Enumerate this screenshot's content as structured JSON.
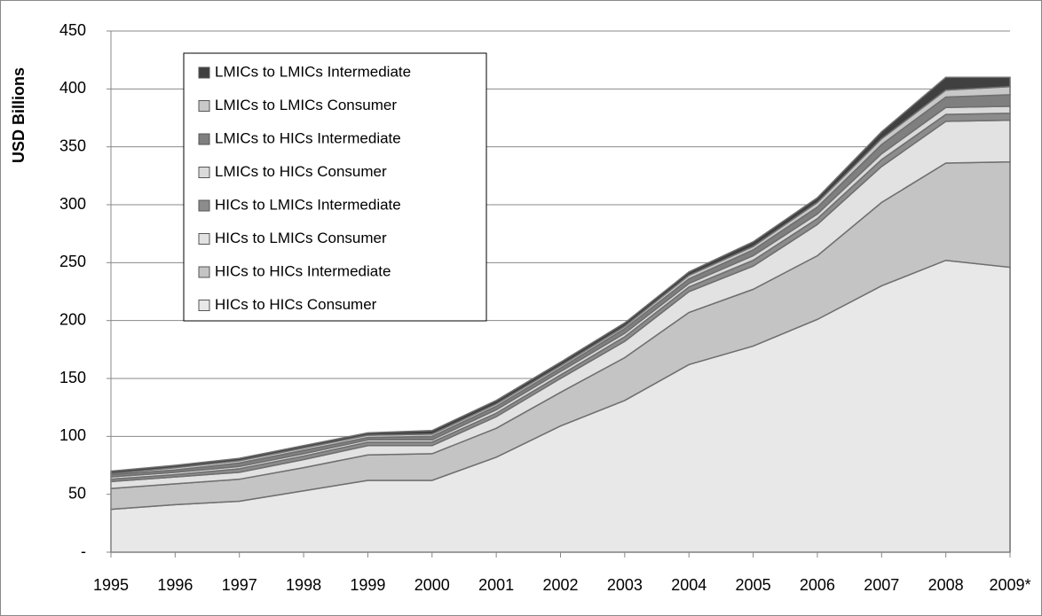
{
  "chart_data": {
    "type": "stacked_area",
    "y_label": "USD Billions",
    "categories": [
      "1995",
      "1996",
      "1997",
      "1998",
      "1999",
      "2000",
      "2001",
      "2002",
      "2003",
      "2004",
      "2005",
      "2006",
      "2007",
      "2008",
      "2009*"
    ],
    "series": [
      {
        "name": "HICs to HICs Consumer",
        "color": "#e8e8e8",
        "values": [
          37,
          41,
          44,
          53,
          62,
          62,
          82,
          109,
          131,
          162,
          178,
          201,
          230,
          252,
          246
        ]
      },
      {
        "name": "HICs to HICs Intermediate",
        "color": "#c4c4c4",
        "values": [
          18,
          18,
          19,
          20,
          22,
          23,
          25,
          29,
          37,
          45,
          49,
          55,
          72,
          84,
          91
        ]
      },
      {
        "name": "HICs to LMICs Consumer",
        "color": "#e2e2e2",
        "values": [
          6,
          6,
          6,
          7,
          8,
          7,
          10,
          12,
          14,
          18,
          20,
          27,
          31,
          36,
          36
        ]
      },
      {
        "name": "HICs to LMICs Intermediate",
        "color": "#8c8c8c",
        "values": [
          2,
          2,
          3,
          3,
          3,
          3,
          3,
          3,
          4,
          4,
          5,
          5,
          6,
          6,
          6
        ]
      },
      {
        "name": "LMICs to HICs Consumer",
        "color": "#dadada",
        "values": [
          2,
          2,
          2,
          2,
          2,
          2,
          3,
          3,
          3,
          3,
          4,
          4,
          5,
          6,
          6
        ]
      },
      {
        "name": "LMICs to HICs Intermediate",
        "color": "#7f7f7f",
        "values": [
          2,
          2,
          3,
          3,
          2,
          3,
          3,
          3,
          4,
          4,
          5,
          6,
          8,
          9,
          10
        ]
      },
      {
        "name": "LMICs to LMICs Consumer",
        "color": "#c8c8c8",
        "values": [
          1,
          2,
          2,
          2,
          2,
          2,
          2,
          2,
          2,
          3,
          3,
          4,
          5,
          6,
          7
        ]
      },
      {
        "name": "LMICs to LMICs Intermediate",
        "color": "#404040",
        "values": [
          2,
          2,
          2,
          2,
          2,
          3,
          3,
          3,
          3,
          3,
          4,
          4,
          6,
          11,
          8
        ]
      }
    ],
    "ylim": [
      0,
      450
    ],
    "yticks": [
      {
        "value": 0,
        "label": "-"
      },
      50,
      100,
      150,
      200,
      250,
      300,
      350,
      400,
      450
    ],
    "grid": true
  }
}
